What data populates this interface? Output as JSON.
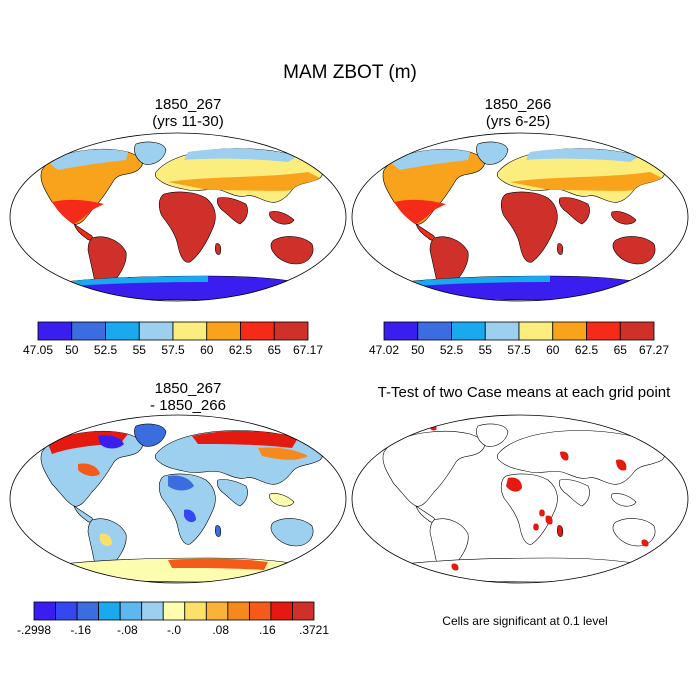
{
  "title": "MAM ZBOT (m)",
  "panels": [
    {
      "title_line1": "1850_267",
      "title_line2": "(yrs 11-30)"
    },
    {
      "title_line1": "1850_266",
      "title_line2": "(yrs 6-25)"
    },
    {
      "title_line1": "1850_267",
      "title_line2": "- 1850_266"
    },
    {
      "title_line1": "T-Test of two Case means at each grid point",
      "title_line2": ""
    }
  ],
  "colorbars": [
    {
      "labels": [
        "47.05",
        "50",
        "52.5",
        "55",
        "57.5",
        "60",
        "62.5",
        "65",
        "67.17"
      ],
      "colors": [
        "#3a1ef0",
        "#3b6ce0",
        "#1aa8ef",
        "#9dd0ee",
        "#fbee7e",
        "#f9a21c",
        "#f52a18",
        "#d0302a"
      ]
    },
    {
      "labels": [
        "47.02",
        "50",
        "52.5",
        "55",
        "57.5",
        "60",
        "62.5",
        "65",
        "67.27"
      ],
      "colors": [
        "#3a1ef0",
        "#3b6ce0",
        "#1aa8ef",
        "#9dd0ee",
        "#fbee7e",
        "#f9a21c",
        "#f52a18",
        "#d0302a"
      ]
    },
    {
      "labels": [
        "-.2998",
        "-.16",
        "-.08",
        "-.0",
        ".08",
        ".16",
        ".3721"
      ],
      "colors": [
        "#3a1ef0",
        "#3547f0",
        "#3b6ce0",
        "#1aa8ef",
        "#5cb8ee",
        "#9dd0ee",
        "#fdfdb0",
        "#fbe06a",
        "#f9b33a",
        "#f6891e",
        "#f45a18",
        "#e41a10",
        "#d0302a"
      ]
    }
  ],
  "significance_note": "Cells are significant at 0.1 level"
}
